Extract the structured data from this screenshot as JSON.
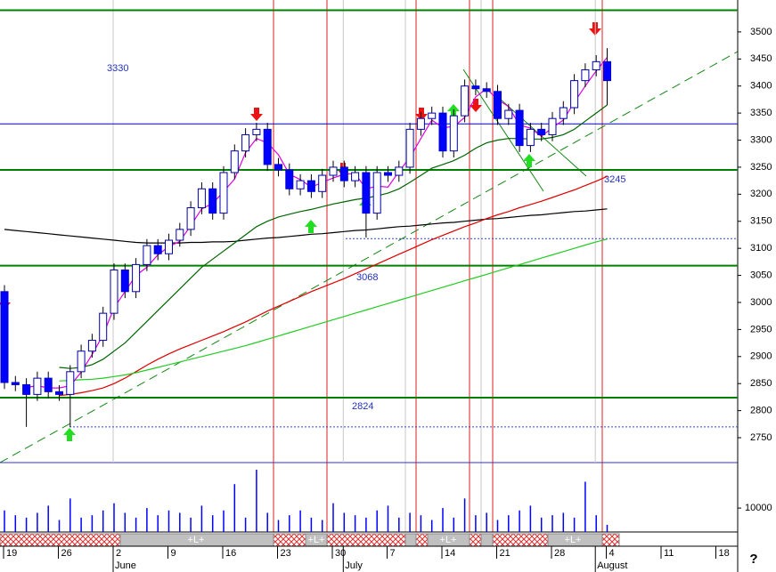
{
  "chart_data": {
    "type": "candlestick",
    "categories": [
      "19",
      null,
      null,
      null,
      null,
      "26",
      null,
      null,
      null,
      null,
      "2",
      null,
      null,
      null,
      null,
      "9",
      null,
      null,
      null,
      null,
      "16",
      null,
      null,
      null,
      null,
      "23",
      null,
      null,
      null,
      null,
      "30",
      null,
      null,
      null,
      null,
      "7",
      null,
      null,
      null,
      null,
      "14",
      null,
      null,
      null,
      null,
      "21",
      null,
      null,
      null,
      null,
      "28",
      null,
      null,
      null,
      null,
      "4",
      null,
      null,
      null,
      null,
      "11",
      null,
      null,
      null,
      null,
      "18"
    ],
    "months": [
      null,
      null,
      null,
      null,
      null,
      null,
      null,
      null,
      null,
      null,
      "June",
      null,
      null,
      null,
      null,
      null,
      null,
      null,
      null,
      null,
      null,
      null,
      null,
      null,
      null,
      null,
      null,
      null,
      null,
      null,
      null,
      "July",
      null,
      null,
      null,
      null,
      null,
      null,
      null,
      null,
      null,
      null,
      null,
      null,
      null,
      null,
      null,
      null,
      null,
      null,
      null,
      null,
      null,
      null,
      "August",
      null,
      null,
      null,
      null,
      null,
      null,
      null,
      null,
      null,
      null,
      null
    ],
    "open": [
      3020,
      2852,
      2848,
      2830,
      2860,
      2835,
      2830,
      2872,
      2910,
      2930,
      2980,
      3060,
      3020,
      3070,
      3105,
      3090,
      3115,
      3135,
      3175,
      3210,
      3165,
      3240,
      3280,
      3310,
      3320,
      3255,
      3245,
      3210,
      3225,
      3205,
      3235,
      3250,
      3225,
      3240,
      3165,
      3240,
      3235,
      3250,
      3320,
      3340,
      3350,
      3280,
      3345,
      3400,
      3395,
      3390,
      3340,
      3355,
      3290,
      3320,
      3310,
      3340,
      3360,
      3410,
      3430,
      3445,
      null,
      null,
      null,
      null,
      null,
      null,
      null,
      null,
      null,
      null
    ],
    "high": [
      3032,
      2864,
      2860,
      2872,
      2872,
      2847,
      2884,
      2922,
      2942,
      2992,
      3072,
      3072,
      3082,
      3117,
      3117,
      3127,
      3147,
      3187,
      3222,
      3222,
      3252,
      3292,
      3322,
      3332,
      3332,
      3267,
      3257,
      3237,
      3237,
      3247,
      3262,
      3262,
      3252,
      3252,
      3252,
      3252,
      3262,
      3332,
      3352,
      3362,
      3362,
      3357,
      3412,
      3412,
      3407,
      3402,
      3367,
      3367,
      3332,
      3332,
      3352,
      3372,
      3422,
      3442,
      3457,
      3470,
      null,
      null,
      null,
      null,
      null,
      null,
      null,
      null,
      null,
      null
    ],
    "low": [
      2840,
      2836,
      2770,
      2818,
      2823,
      2818,
      2770,
      2860,
      2898,
      2918,
      2968,
      3008,
      3008,
      3058,
      3078,
      3078,
      3103,
      3123,
      3163,
      3153,
      3153,
      3228,
      3268,
      3298,
      3243,
      3233,
      3198,
      3198,
      3193,
      3193,
      3223,
      3213,
      3213,
      3120,
      3153,
      3223,
      3223,
      3238,
      3308,
      3328,
      3268,
      3268,
      3333,
      3383,
      3378,
      3328,
      3328,
      3278,
      3278,
      3298,
      3298,
      3328,
      3348,
      3398,
      3418,
      3365,
      null,
      null,
      null,
      null,
      null,
      null,
      null,
      null,
      null,
      null
    ],
    "close": [
      2852,
      2848,
      2830,
      2860,
      2835,
      2830,
      2872,
      2910,
      2930,
      2980,
      3060,
      3020,
      3070,
      3105,
      3090,
      3115,
      3135,
      3175,
      3210,
      3165,
      3240,
      3280,
      3310,
      3320,
      3255,
      3245,
      3210,
      3225,
      3205,
      3235,
      3250,
      3225,
      3240,
      3165,
      3240,
      3235,
      3250,
      3320,
      3340,
      3350,
      3280,
      3345,
      3400,
      3395,
      3390,
      3340,
      3355,
      3290,
      3320,
      3310,
      3340,
      3360,
      3410,
      3430,
      3445,
      3410,
      null,
      null,
      null,
      null,
      null,
      null,
      null,
      null,
      null,
      null
    ],
    "volume": [
      9000,
      7000,
      6000,
      8000,
      11000,
      5000,
      14000,
      6000,
      7000,
      9000,
      12000,
      8000,
      6000,
      10000,
      7000,
      9000,
      8000,
      6000,
      11000,
      7000,
      9000,
      20000,
      6000,
      26000,
      8000,
      5000,
      7000,
      9000,
      6000,
      5000,
      12000,
      8000,
      7000,
      6000,
      9000,
      11000,
      6000,
      8000,
      7000,
      5000,
      10000,
      6000,
      14000,
      7000,
      8000,
      5000,
      7000,
      9000,
      11000,
      6000,
      7000,
      8000,
      6000,
      21000,
      7000,
      3000,
      null,
      null,
      null,
      null,
      null,
      null,
      null,
      null,
      null,
      null
    ],
    "up_color": "#ffffff",
    "down_color": "#0000ff",
    "volume_color": "#0000ff",
    "series": [
      {
        "color": "#000000",
        "values": [
          3135,
          3133,
          3131,
          3129,
          3127,
          3125,
          3123,
          3121,
          3119,
          3117,
          3115,
          3113,
          3111,
          3110,
          3110,
          3110,
          3110,
          3111,
          3111,
          3112,
          3112,
          3113,
          3115,
          3117,
          3119,
          3120,
          3122,
          3124,
          3126,
          3127,
          3129,
          3131,
          3133,
          3134,
          3136,
          3138,
          3140,
          3141,
          3143,
          3145,
          3147,
          3148,
          3150,
          3152,
          3154,
          3155,
          3157,
          3159,
          3161,
          3162,
          3164,
          3166,
          3168,
          3169,
          3171,
          3173,
          null,
          null,
          null,
          null,
          null,
          null,
          null,
          null,
          null,
          null
        ]
      },
      {
        "color": "#dd0000",
        "values": [
          null,
          null,
          null,
          null,
          null,
          2828,
          2830,
          2833,
          2837,
          2842,
          2850,
          2860,
          2872,
          2884,
          2895,
          2905,
          2914,
          2922,
          2930,
          2938,
          2946,
          2955,
          2964,
          2974,
          2984,
          2993,
          3002,
          3011,
          3020,
          3028,
          3036,
          3044,
          3053,
          3062,
          3071,
          3080,
          3089,
          3098,
          3107,
          3116,
          3124,
          3132,
          3140,
          3147,
          3155,
          3162,
          3168,
          3175,
          3181,
          3187,
          3194,
          3201,
          3208,
          3216,
          3224,
          3233,
          null,
          null,
          null,
          null,
          null,
          null,
          null,
          null,
          null,
          null
        ]
      },
      {
        "color": "#22cc22",
        "values": [
          null,
          null,
          null,
          null,
          null,
          2855,
          2856,
          2857,
          2858,
          2860,
          2863,
          2866,
          2870,
          2875,
          2880,
          2885,
          2890,
          2895,
          2900,
          2905,
          2910,
          2915,
          2920,
          2926,
          2932,
          2938,
          2944,
          2950,
          2956,
          2962,
          2968,
          2974,
          2980,
          2986,
          2992,
          2998,
          3004,
          3010,
          3016,
          3022,
          3028,
          3034,
          3040,
          3046,
          3052,
          3058,
          3064,
          3070,
          3076,
          3082,
          3088,
          3094,
          3100,
          3106,
          3112,
          3117,
          null,
          null,
          null,
          null,
          null,
          null,
          null,
          null,
          null,
          null
        ]
      },
      {
        "color": "#006400",
        "values": [
          null,
          null,
          null,
          null,
          null,
          2880,
          2878,
          2880,
          2885,
          2895,
          2910,
          2925,
          2945,
          2965,
          2985,
          3005,
          3025,
          3045,
          3065,
          3080,
          3095,
          3110,
          3125,
          3140,
          3150,
          3158,
          3163,
          3168,
          3172,
          3177,
          3182,
          3186,
          3190,
          3193,
          3197,
          3202,
          3210,
          3222,
          3235,
          3248,
          3255,
          3262,
          3272,
          3285,
          3295,
          3300,
          3303,
          3303,
          3302,
          3302,
          3305,
          3310,
          3320,
          3335,
          3350,
          3365,
          null,
          null,
          null,
          null,
          null,
          null,
          null,
          null,
          null,
          null
        ]
      },
      {
        "color": "#e000e0",
        "values": [
          null,
          null,
          2843,
          2846,
          2842,
          2842,
          2846,
          2871,
          2904,
          2940,
          2990,
          3020,
          3050,
          3065,
          3088,
          3103,
          3113,
          3142,
          3173,
          3183,
          3205,
          3228,
          3277,
          3303,
          3295,
          3273,
          3237,
          3227,
          3213,
          3222,
          3230,
          3237,
          3238,
          3210,
          3215,
          3213,
          3242,
          3268,
          3303,
          3337,
          3323,
          3325,
          3342,
          3380,
          3395,
          3375,
          3362,
          3328,
          3322,
          3307,
          3323,
          3337,
          3370,
          3400,
          3428,
          3453,
          null,
          null,
          null,
          null,
          null,
          null,
          null,
          null,
          null,
          null
        ]
      }
    ],
    "hlines": [
      {
        "value": 3540,
        "color": "#008000",
        "show_label": false
      },
      {
        "value": 3330,
        "color": "#0000cc",
        "show_label": true
      },
      {
        "value": 3245,
        "color": "#008000",
        "show_label": true
      },
      {
        "value": 3068,
        "color": "#008000",
        "show_label": true
      },
      {
        "value": 2824,
        "color": "#008000",
        "show_label": true
      }
    ],
    "dotted_lines": [
      3118,
      2770
    ],
    "ylim": [
      2704,
      3559
    ],
    "yticks": [
      2750,
      2800,
      2850,
      2900,
      2950,
      3000,
      3050,
      3100,
      3150,
      3200,
      3250,
      3300,
      3350,
      3400,
      3450,
      3500
    ],
    "volume_ylim": [
      0,
      29000
    ],
    "volume_yticks": [
      10000
    ],
    "strip_labels": [
      "+L+",
      "+L+",
      "+L+",
      "+L+"
    ],
    "help": "?"
  }
}
